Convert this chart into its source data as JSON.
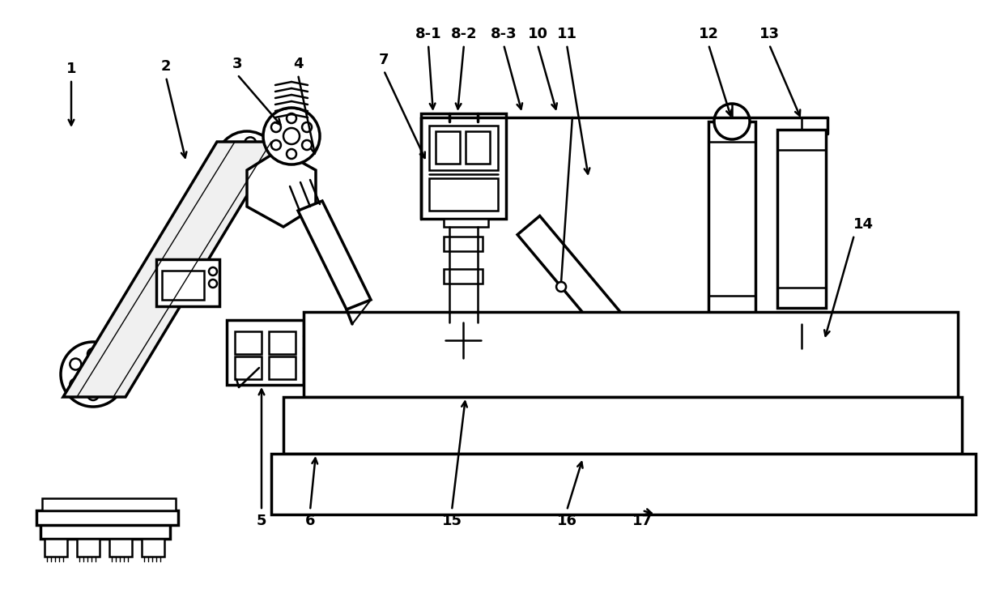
{
  "bg_color": "#ffffff",
  "line_color": "#000000",
  "lw": 1.8,
  "lw_thick": 2.5,
  "label_fs": 13
}
